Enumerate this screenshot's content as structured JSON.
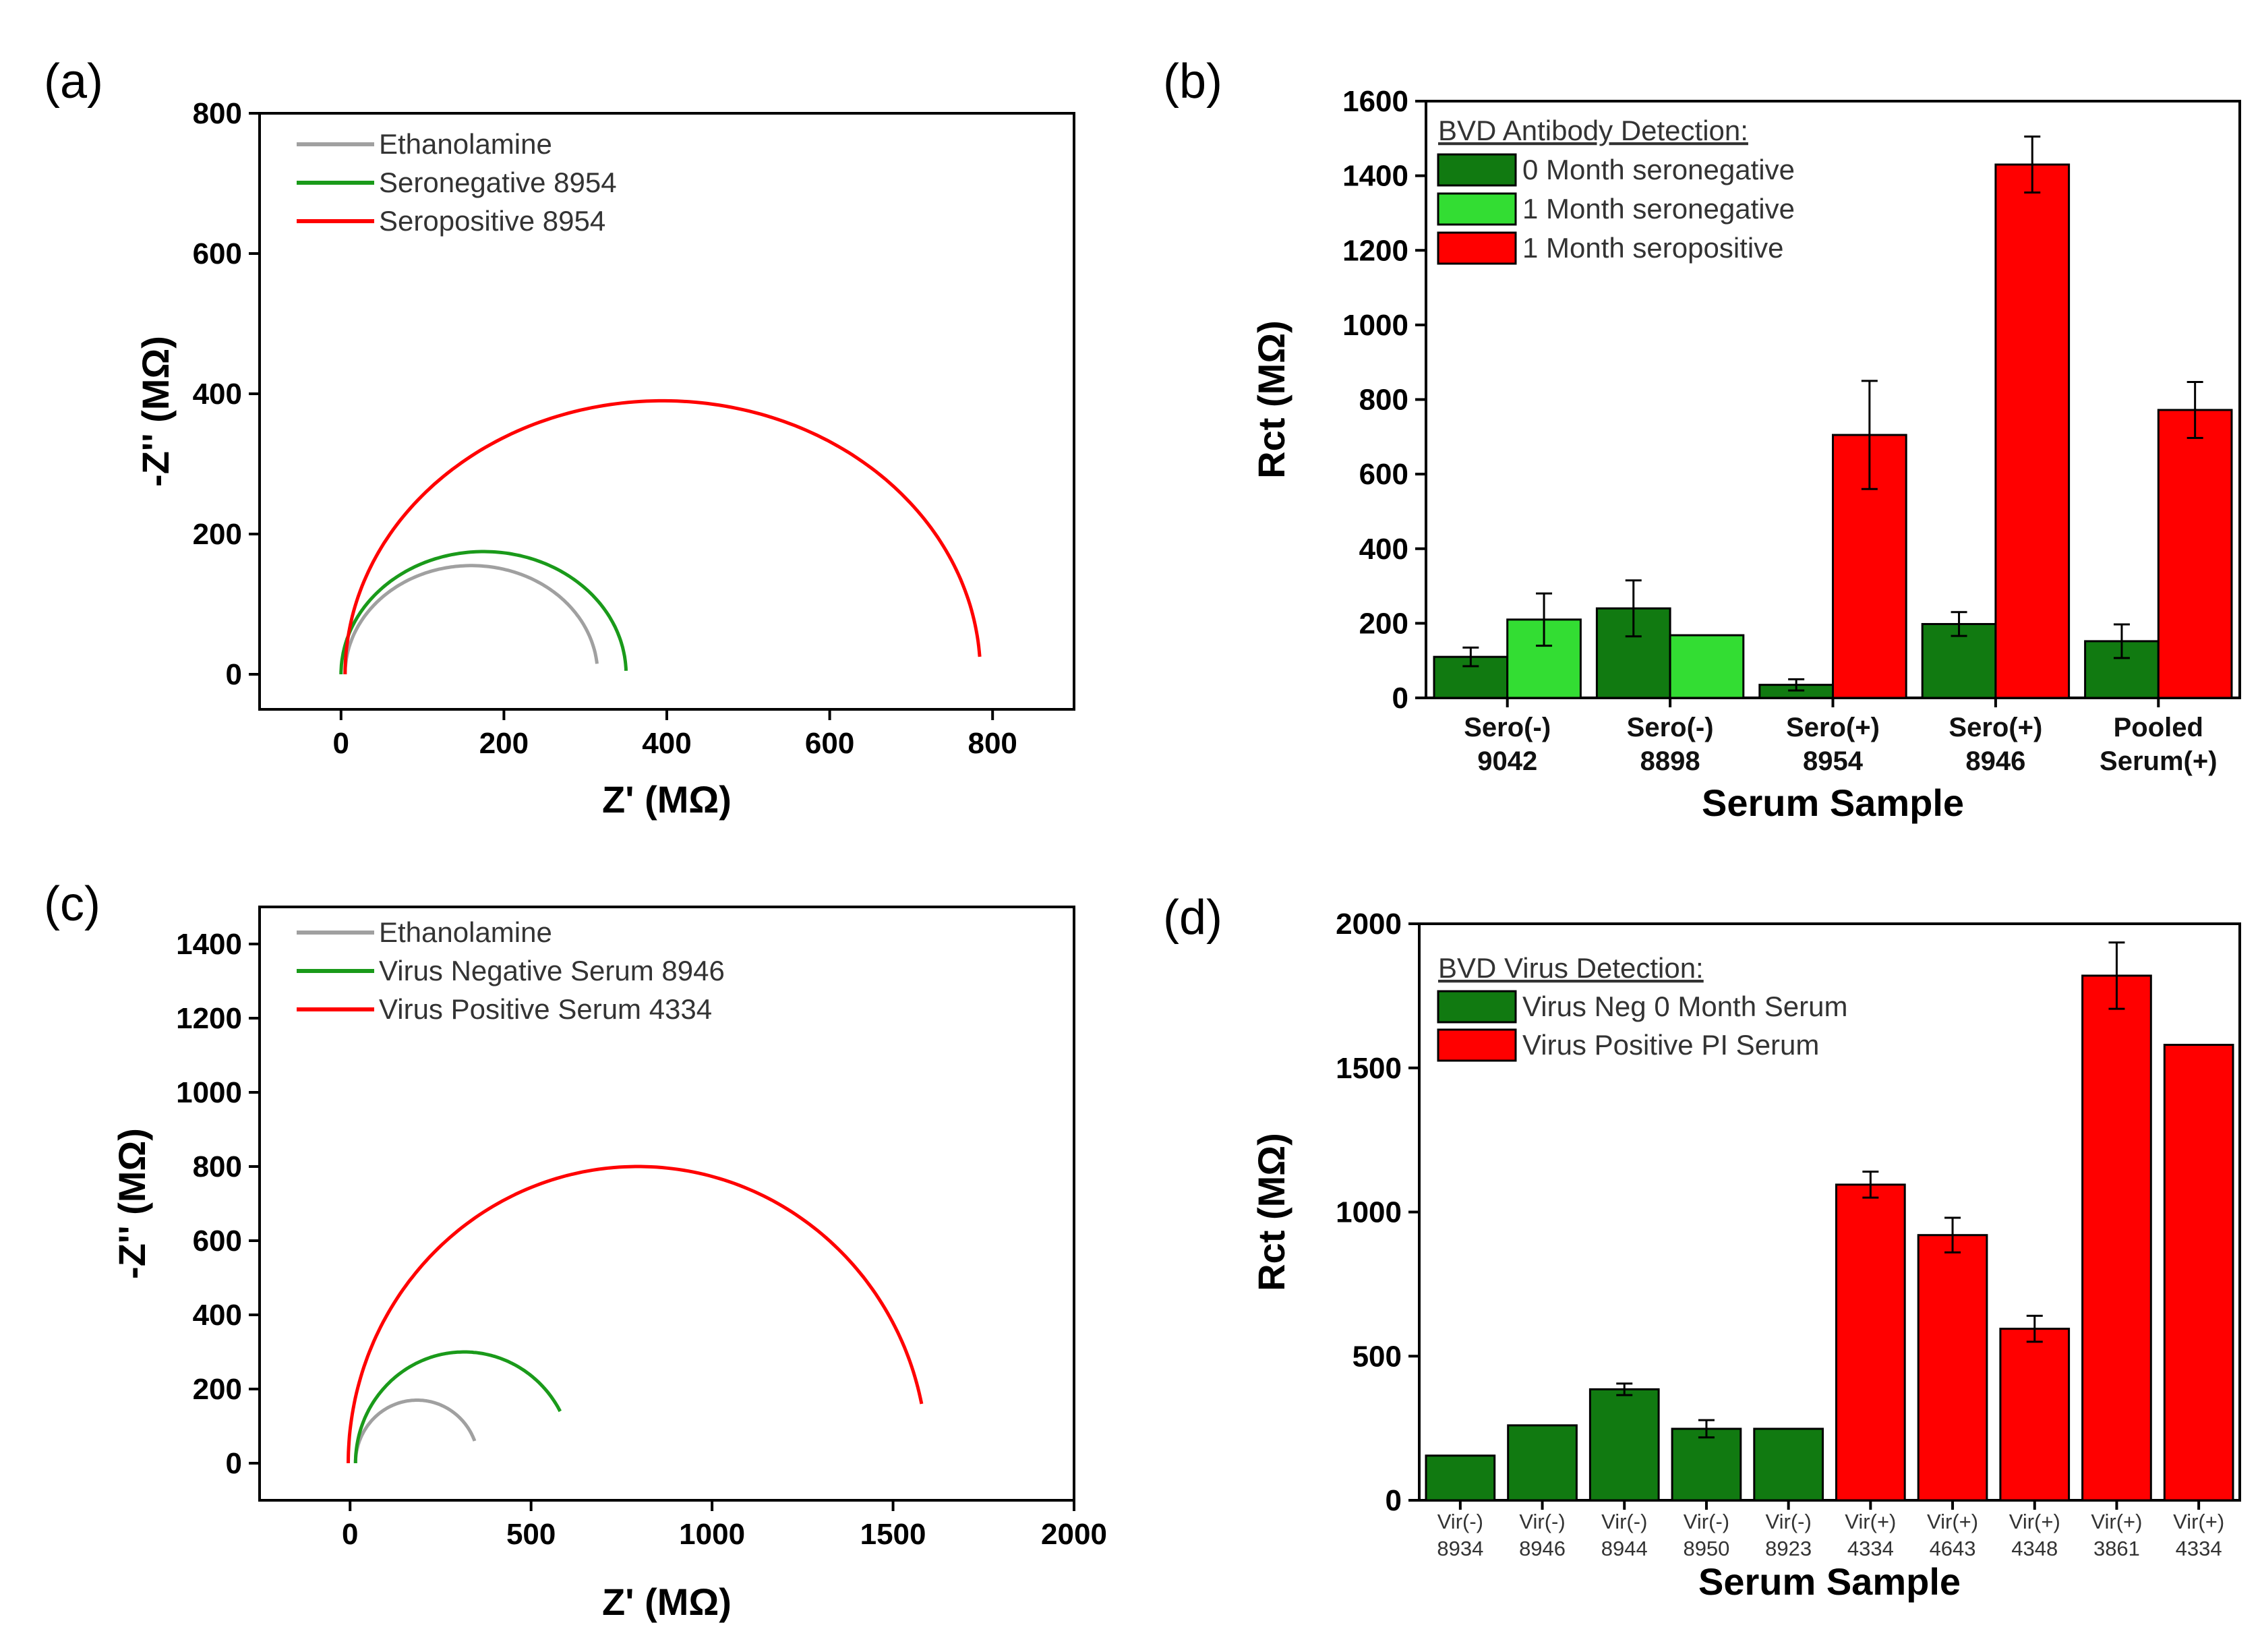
{
  "colors": {
    "gray": "#a0a0a0",
    "green_curve": "#1a9a1a",
    "red": "#ff0000",
    "dark_green": "#117a11",
    "light_green": "#33dd33",
    "axis": "#000000"
  },
  "chart_data": [
    {
      "id": "a",
      "panel_label": "(a)",
      "type": "line",
      "xlabel": "Z' (MΩ)",
      "ylabel": "-Z'' (MΩ)",
      "xlim": [
        -100,
        900
      ],
      "ylim": [
        -50,
        800
      ],
      "xticks": [
        0,
        200,
        400,
        600,
        800
      ],
      "yticks": [
        0,
        200,
        400,
        600,
        800
      ],
      "legend_position": "top-left",
      "series": [
        {
          "name": "Ethanolamine",
          "color": "gray",
          "center": 160,
          "radius": 155,
          "end_y": 15
        },
        {
          "name": "Seronegative 8954",
          "color": "green_curve",
          "center": 175,
          "radius": 175,
          "end_y": 5
        },
        {
          "name": "Seropositive 8954",
          "color": "red",
          "center": 395,
          "radius": 390,
          "end_y": 25
        }
      ]
    },
    {
      "id": "b",
      "panel_label": "(b)",
      "type": "bar",
      "xlabel": "Serum Sample",
      "ylabel": "Rct (MΩ)",
      "ylim": [
        0,
        1600
      ],
      "yticks": [
        0,
        200,
        400,
        600,
        800,
        1000,
        1200,
        1400,
        1600
      ],
      "legend_title": "BVD Antibody Detection:",
      "legend_position": "top-left",
      "categories": [
        {
          "line1": "Sero(-)",
          "line2": "9042"
        },
        {
          "line1": "Sero(-)",
          "line2": "8898"
        },
        {
          "line1": "Sero(+)",
          "line2": "8954"
        },
        {
          "line1": "Sero(+)",
          "line2": "8946"
        },
        {
          "line1": "Pooled",
          "line2": "Serum(+)"
        }
      ],
      "legend": [
        {
          "name": "0 Month seronegative",
          "color": "dark_green"
        },
        {
          "name": "1 Month seronegative",
          "color": "light_green"
        },
        {
          "name": "1 Month seropositive",
          "color": "red"
        }
      ],
      "bars": [
        {
          "cat": 0,
          "slot": 0,
          "value": 110,
          "err": 25,
          "color": "dark_green"
        },
        {
          "cat": 0,
          "slot": 1,
          "value": 210,
          "err": 70,
          "color": "light_green"
        },
        {
          "cat": 1,
          "slot": 0,
          "value": 240,
          "err": 75,
          "color": "dark_green"
        },
        {
          "cat": 1,
          "slot": 1,
          "value": 168,
          "err": 0,
          "color": "light_green"
        },
        {
          "cat": 2,
          "slot": 0,
          "value": 35,
          "err": 15,
          "color": "dark_green"
        },
        {
          "cat": 2,
          "slot": 1,
          "value": 705,
          "err": 145,
          "color": "red"
        },
        {
          "cat": 3,
          "slot": 0,
          "value": 198,
          "err": 32,
          "color": "dark_green"
        },
        {
          "cat": 3,
          "slot": 1,
          "value": 1430,
          "err": 75,
          "color": "red"
        },
        {
          "cat": 4,
          "slot": 0,
          "value": 152,
          "err": 45,
          "color": "dark_green"
        },
        {
          "cat": 4,
          "slot": 1,
          "value": 772,
          "err": 75,
          "color": "red"
        }
      ]
    },
    {
      "id": "c",
      "panel_label": "(c)",
      "type": "line",
      "xlabel": "Z' (MΩ)",
      "ylabel": "-Z'' (MΩ)",
      "xlim": [
        -250,
        2000
      ],
      "ylim": [
        -100,
        1500
      ],
      "xticks": [
        0,
        500,
        1000,
        1500,
        2000
      ],
      "yticks": [
        0,
        200,
        400,
        600,
        800,
        1000,
        1200,
        1400
      ],
      "legend_position": "top-left",
      "series": [
        {
          "name": "Ethanolamine",
          "color": "gray",
          "center": 185,
          "radius": 170,
          "end_y": 60
        },
        {
          "name": "Virus Negative Serum 8946",
          "color": "green_curve",
          "center": 315,
          "radius": 300,
          "end_y": 140
        },
        {
          "name": "Virus Positive Serum 4334",
          "color": "red",
          "center": 795,
          "radius": 800,
          "end_y": 160
        }
      ]
    },
    {
      "id": "d",
      "panel_label": "(d)",
      "type": "bar",
      "xlabel": "Serum Sample",
      "ylabel": "Rct (MΩ)",
      "ylim": [
        0,
        2000
      ],
      "yticks": [
        0,
        500,
        1000,
        1500,
        2000
      ],
      "legend_title": "BVD Virus Detection:",
      "legend_position": "top-left",
      "categories": [
        {
          "line1": "Vir(-)",
          "line2": "8934"
        },
        {
          "line1": "Vir(-)",
          "line2": "8946"
        },
        {
          "line1": "Vir(-)",
          "line2": "8944"
        },
        {
          "line1": "Vir(-)",
          "line2": "8950"
        },
        {
          "line1": "Vir(-)",
          "line2": "8923"
        },
        {
          "line1": "Vir(+)",
          "line2": "4334"
        },
        {
          "line1": "Vir(+)",
          "line2": "4643"
        },
        {
          "line1": "Vir(+)",
          "line2": "4348"
        },
        {
          "line1": "Vir(+)",
          "line2": "3861"
        },
        {
          "line1": "Vir(+)",
          "line2": "4334"
        }
      ],
      "legend": [
        {
          "name": "Virus Neg 0 Month Serum",
          "color": "dark_green"
        },
        {
          "name": "Virus Positive PI Serum",
          "color": "red"
        }
      ],
      "bars": [
        {
          "cat": 0,
          "value": 155,
          "err": 0,
          "color": "dark_green"
        },
        {
          "cat": 1,
          "value": 260,
          "err": 0,
          "color": "dark_green"
        },
        {
          "cat": 2,
          "value": 385,
          "err": 20,
          "color": "dark_green"
        },
        {
          "cat": 3,
          "value": 248,
          "err": 30,
          "color": "dark_green"
        },
        {
          "cat": 4,
          "value": 248,
          "err": 0,
          "color": "dark_green"
        },
        {
          "cat": 5,
          "value": 1095,
          "err": 45,
          "color": "red"
        },
        {
          "cat": 6,
          "value": 920,
          "err": 60,
          "color": "red"
        },
        {
          "cat": 7,
          "value": 595,
          "err": 45,
          "color": "red"
        },
        {
          "cat": 8,
          "value": 1820,
          "err": 115,
          "color": "red"
        },
        {
          "cat": 9,
          "value": 1580,
          "err": 0,
          "color": "red"
        }
      ]
    }
  ]
}
